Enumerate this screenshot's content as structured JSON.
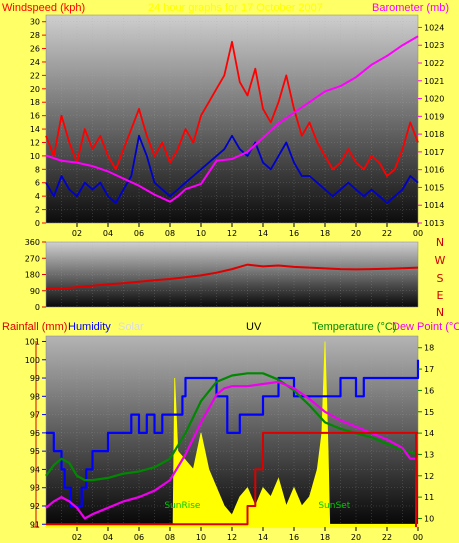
{
  "header": {
    "windspeed_label": "Windspeed (kph)",
    "timestamp": "24 hour graphs for 17 October 2007",
    "barometer_label": "Barometer (mb)"
  },
  "bottom_header": {
    "rainfall_label": "Rainfall (mm)",
    "humidity_label": "Humidity",
    "solar_label": "Solar",
    "uv_label": "UV",
    "temperature_label": "Temperature (°C)",
    "dewpoint_label": "Dew Point (°C"
  },
  "direction_labels": [
    "N",
    "W",
    "S",
    "E",
    "N"
  ],
  "annotations": {
    "sunrise": "SunRise",
    "sunset": "SunSet"
  },
  "colors": {
    "background": "#ffff66",
    "wind_gust": "#ff0000",
    "wind_avg": "#0000cc",
    "barometer": "#ff00ff",
    "direction": "#dd0000",
    "humidity": "#0000ff",
    "solar": "#ffff00",
    "rainfall": "#dd0000",
    "temperature": "#008800",
    "dewpoint": "#ee00ee"
  },
  "chart_data": [
    {
      "type": "line",
      "xlim": [
        0,
        24
      ],
      "x_ticks": [
        "02",
        "04",
        "06",
        "08",
        "10",
        "12",
        "14",
        "16",
        "18",
        "20",
        "22",
        "00"
      ],
      "y_left": {
        "label": "Windspeed (kph)",
        "lim": [
          0,
          31
        ],
        "ticks": [
          0,
          2,
          4,
          6,
          8,
          10,
          12,
          14,
          16,
          18,
          20,
          22,
          24,
          26,
          28,
          30
        ]
      },
      "y_right": {
        "label": "Barometer (mb)",
        "lim": [
          1013,
          1024.7
        ],
        "ticks": [
          1013,
          1014,
          1015,
          1016,
          1017,
          1018,
          1019,
          1020,
          1021,
          1022,
          1023,
          1024
        ]
      },
      "series": [
        {
          "name": "Windspeed gust",
          "axis": "left",
          "x": [
            0,
            0.5,
            1,
            1.5,
            2,
            2.5,
            3,
            3.5,
            4,
            4.5,
            5,
            5.5,
            6,
            6.5,
            7,
            7.5,
            8,
            8.5,
            9,
            9.5,
            10,
            10.5,
            11,
            11.5,
            12,
            12.5,
            13,
            13.5,
            14,
            14.5,
            15,
            15.5,
            16,
            16.5,
            17,
            17.5,
            18,
            18.5,
            19,
            19.5,
            20,
            20.5,
            21,
            21.5,
            22,
            22.5,
            23,
            23.5,
            24
          ],
          "values": [
            13,
            10,
            16,
            12,
            9,
            14,
            11,
            13,
            10,
            8,
            11,
            14,
            17,
            13,
            10,
            12,
            9,
            11,
            14,
            12,
            16,
            18,
            20,
            22,
            27,
            21,
            19,
            23,
            17,
            15,
            18,
            22,
            17,
            13,
            15,
            12,
            10,
            8,
            9,
            11,
            9,
            8,
            10,
            9,
            7,
            8,
            11,
            15,
            12
          ]
        },
        {
          "name": "Windspeed average",
          "axis": "left",
          "x": [
            0,
            0.5,
            1,
            1.5,
            2,
            2.5,
            3,
            3.5,
            4,
            4.5,
            5,
            5.5,
            6,
            6.5,
            7,
            7.5,
            8,
            8.5,
            9,
            9.5,
            10,
            10.5,
            11,
            11.5,
            12,
            12.5,
            13,
            13.5,
            14,
            14.5,
            15,
            15.5,
            16,
            16.5,
            17,
            17.5,
            18,
            18.5,
            19,
            19.5,
            20,
            20.5,
            21,
            21.5,
            22,
            22.5,
            23,
            23.5,
            24
          ],
          "values": [
            6,
            4,
            7,
            5,
            4,
            6,
            5,
            6,
            4,
            3,
            5,
            7,
            13,
            10,
            6,
            5,
            4,
            5,
            6,
            7,
            8,
            9,
            10,
            11,
            13,
            11,
            10,
            12,
            9,
            8,
            10,
            12,
            9,
            7,
            7,
            6,
            5,
            4,
            5,
            6,
            5,
            4,
            5,
            4,
            3,
            4,
            5,
            7,
            6
          ]
        },
        {
          "name": "Barometer",
          "axis": "right",
          "x": [
            0,
            1,
            2,
            3,
            4,
            5,
            6,
            7,
            7.5,
            8,
            8.5,
            9,
            10,
            11,
            12,
            13,
            14,
            15,
            16,
            17,
            18,
            19,
            20,
            21,
            22,
            23,
            24
          ],
          "values": [
            1016.8,
            1016.5,
            1016.4,
            1016.2,
            1015.9,
            1015.5,
            1015.1,
            1014.6,
            1014.4,
            1014.2,
            1014.5,
            1014.9,
            1015.2,
            1016.5,
            1016.6,
            1017.0,
            1017.8,
            1018.6,
            1019.2,
            1019.8,
            1020.4,
            1020.7,
            1021.2,
            1021.9,
            1022.4,
            1023.0,
            1023.5
          ]
        }
      ]
    },
    {
      "type": "line",
      "xlim": [
        0,
        24
      ],
      "y_left": {
        "lim": [
          0,
          360
        ],
        "ticks": [
          0,
          90,
          180,
          270,
          360
        ]
      },
      "series": [
        {
          "name": "Wind direction",
          "x": [
            0,
            1,
            2,
            3,
            4,
            5,
            6,
            7,
            8,
            9,
            10,
            11,
            12,
            13,
            14,
            15,
            16,
            17,
            18,
            19,
            20,
            21,
            22,
            23,
            24
          ],
          "values": [
            100,
            102,
            110,
            118,
            125,
            132,
            140,
            148,
            155,
            165,
            175,
            190,
            210,
            235,
            225,
            230,
            222,
            218,
            214,
            210,
            208,
            210,
            212,
            215,
            218
          ]
        }
      ]
    },
    {
      "type": "line",
      "xlim": [
        0,
        24
      ],
      "y_left": {
        "label": "Humidity",
        "lim": [
          90.85,
          101.3
        ],
        "ticks": [
          91,
          92,
          93,
          94,
          95,
          96,
          97,
          98,
          99,
          100,
          101
        ]
      },
      "y_right": {
        "label": "Temperature (°C)",
        "lim": [
          9.6,
          18.55
        ],
        "ticks": [
          10,
          11,
          12,
          13,
          14,
          15,
          16,
          17,
          18
        ]
      },
      "series": [
        {
          "name": "Humidity",
          "axis": "left",
          "step": true,
          "x": [
            0,
            0.5,
            1,
            1.2,
            1.6,
            2.3,
            2.6,
            3,
            4,
            5,
            5.5,
            6,
            6.5,
            7,
            7.5,
            8,
            8.8,
            9,
            10,
            11,
            11.7,
            12,
            12.5,
            13,
            14,
            15,
            16,
            17,
            18,
            19,
            20,
            20.5,
            21,
            22,
            23,
            24
          ],
          "values": [
            96,
            95,
            94,
            93,
            92,
            93,
            94,
            95,
            96,
            96,
            97,
            96,
            97,
            96,
            97,
            97,
            98,
            99,
            99,
            98,
            96,
            96,
            97,
            97,
            98,
            99,
            98,
            98,
            98,
            99,
            98,
            99,
            99,
            99,
            99,
            100
          ]
        },
        {
          "name": "Solar",
          "axis": "left",
          "fill": true,
          "x": [
            0,
            8.2,
            8.3,
            8.5,
            9,
            9.5,
            10,
            10.5,
            11,
            11.5,
            12,
            12.5,
            13,
            13.5,
            14,
            14.5,
            15,
            15.5,
            16,
            16.5,
            17,
            17.5,
            17.8,
            18,
            18.2,
            18.3,
            24
          ],
          "values": [
            91,
            91,
            99,
            95,
            94.5,
            94,
            96,
            94,
            93,
            92,
            91.5,
            92.5,
            93,
            92,
            93,
            92.5,
            93.5,
            92,
            93,
            92,
            92.5,
            94,
            96,
            101,
            95,
            91,
            91
          ]
        },
        {
          "name": "Temperature",
          "axis": "right",
          "x": [
            0,
            0.5,
            1,
            1.5,
            2,
            2.5,
            3,
            4,
            5,
            6,
            7,
            7.5,
            8,
            9,
            10,
            11,
            12,
            13,
            14,
            15,
            16,
            17,
            18,
            19,
            20,
            21,
            22,
            23,
            24
          ],
          "values": [
            12.0,
            12.5,
            12.8,
            12.6,
            12.0,
            11.8,
            11.8,
            11.9,
            12.1,
            12.2,
            12.4,
            12.6,
            12.8,
            14.0,
            15.5,
            16.4,
            16.7,
            16.8,
            16.8,
            16.5,
            16.0,
            15.3,
            14.5,
            14.2,
            14.0,
            13.8,
            13.5,
            13.2,
            13.0
          ]
        },
        {
          "name": "Dew Point",
          "axis": "right",
          "x": [
            0,
            0.5,
            1,
            1.5,
            2,
            2.5,
            3,
            4,
            5,
            6,
            7,
            8,
            9,
            10,
            11,
            11.5,
            12,
            13,
            14,
            15,
            16,
            17,
            18,
            19,
            20,
            21,
            22,
            23,
            23.5,
            24
          ],
          "values": [
            10.5,
            10.8,
            11.0,
            10.8,
            10.5,
            10.0,
            10.2,
            10.5,
            10.8,
            11.0,
            11.3,
            11.8,
            13.0,
            14.5,
            15.8,
            16.1,
            16.2,
            16.2,
            16.3,
            16.4,
            16.1,
            15.6,
            15.0,
            14.6,
            14.3,
            14.0,
            13.7,
            13.3,
            12.8,
            12.8
          ]
        },
        {
          "name": "Rainfall",
          "axis": "left",
          "step": true,
          "x": [
            0,
            12.7,
            13,
            13.5,
            14,
            24
          ],
          "values": [
            91,
            91,
            92,
            94,
            96,
            96
          ]
        }
      ]
    }
  ]
}
